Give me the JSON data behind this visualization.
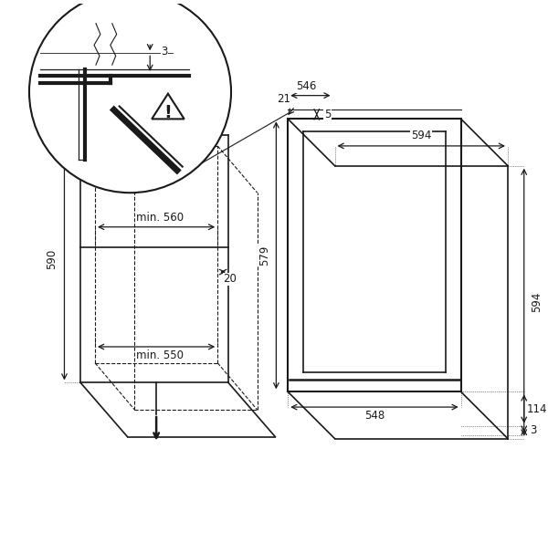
{
  "bg_color": "#ffffff",
  "line_color": "#1a1a1a",
  "figsize": [
    6.0,
    6.06
  ],
  "dpi": 100,
  "annotations": {
    "min_550": "min. 550",
    "min_560": "min. 560",
    "gap_20": "20",
    "height_590": "590",
    "width_548": "548",
    "height_579": "579",
    "top_114": "114",
    "top_3": "3",
    "right_594": "594",
    "bottom_594": "594",
    "bottom_5": "5",
    "side_546": "546",
    "bottom_21": "21",
    "gap_3": "3"
  }
}
